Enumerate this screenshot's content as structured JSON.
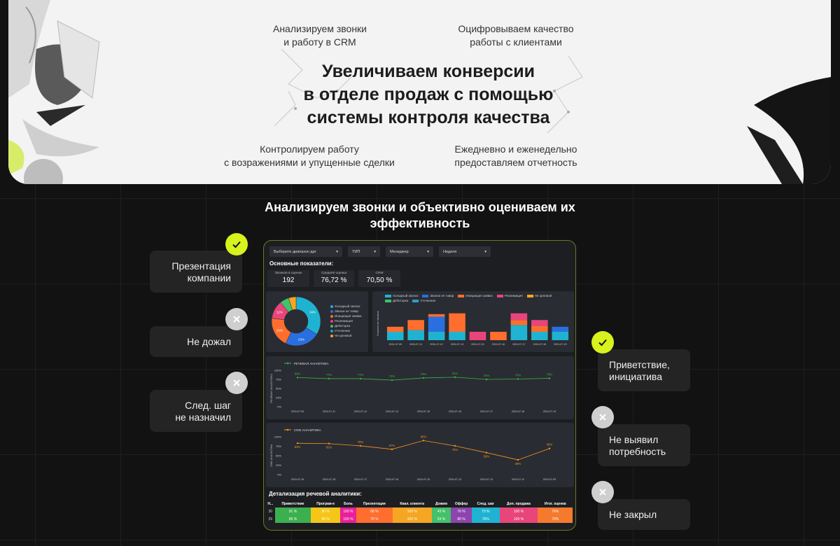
{
  "hero": {
    "cap_top_left": [
      "Анализируем звонки",
      "и работу в CRM"
    ],
    "cap_top_right": [
      "Оцифровываем качество",
      "работы с клиентами"
    ],
    "title": [
      "Увеличиваем конверсии",
      "в отделе продаж с помощью",
      "системы контроля качества"
    ],
    "cap_bottom_left": [
      "Контролируем работу",
      "с возражениями и упущенные сделки"
    ],
    "cap_bottom_right": [
      "Ежедневно и еженедельно",
      "предоставляем отчетность"
    ]
  },
  "section": {
    "title": [
      "Анализируем звонки и объективно оцениваем их",
      "эффективность"
    ]
  },
  "cards": {
    "presentation": [
      "Презентация",
      "компании"
    ],
    "not_waited": [
      "Не дожал"
    ],
    "next_step": [
      "След. шаг",
      "не назначил"
    ],
    "greeting": [
      "Приветствие,",
      "инициатива"
    ],
    "needs": [
      "Не выявил",
      "потребность"
    ],
    "not_closed": [
      "Не закрыл"
    ]
  },
  "dashboard": {
    "filters": [
      "Выберите диапазон дат",
      "ТИП",
      "Менеджер",
      "Неделя"
    ],
    "main_title": "Основные показатели:",
    "kpis": [
      {
        "label": "Звонков в оценке",
        "value": "192"
      },
      {
        "label": "Средняя оценка",
        "value": "76,72 %"
      },
      {
        "label": "CRM",
        "value": "70,50 %"
      }
    ],
    "detail_title": "Детализация речевой аналитики:"
  },
  "colors": {
    "accent": "#d7f21c",
    "cold": "#1fb3d1",
    "not_goods": "#2a6fe0",
    "init": "#ff6e2e",
    "reanim": "#e8457a",
    "not_target": "#f5a623",
    "debt": "#43c16b",
    "clarify": "#27a0c9",
    "speech_line": "#3cb04e",
    "crm_line": "#f5961b"
  },
  "chart_data": [
    {
      "type": "pie",
      "legend": [
        "Холодный звонок",
        "Звонок не товар",
        "Инициация заявки",
        "Реанимация",
        "Дебиторка",
        "Уточнение",
        "Не целевой"
      ],
      "slices": [
        {
          "name": "Холодный звонок",
          "value": 34,
          "label": "34%",
          "color": "#1fb3d1"
        },
        {
          "name": "Звонок не товар",
          "value": 23,
          "label": "23%",
          "color": "#2a6fe0"
        },
        {
          "name": "Инициация заявки",
          "value": 20,
          "label": "20%",
          "color": "#ff6e2e"
        },
        {
          "name": "Реанимация",
          "value": 12,
          "label": "12%",
          "color": "#e8457a"
        },
        {
          "name": "Дебиторка",
          "value": 6,
          "label": "",
          "color": "#43c16b"
        },
        {
          "name": "Не целевой",
          "value": 5,
          "label": "",
          "color": "#f5a623"
        }
      ]
    },
    {
      "type": "bar",
      "stacked": true,
      "legend": [
        "Холодный звонок",
        "Звонок не товар",
        "Инициация заявки",
        "Реанимация",
        "Не целевой",
        "Дебиторка",
        "Уточнение"
      ],
      "ylabel": "Количество звонков",
      "categories": [
        "2024-07-09",
        "2024-07-11",
        "2024-07-12",
        "2024-07-13",
        "2024-07-15",
        "2024-07-16",
        "2024-07-17",
        "2024-07-18",
        "2024-07-19"
      ],
      "series": [
        {
          "name": "Холодный звонок",
          "color": "#1fb3d1",
          "values": [
            10,
            12,
            10,
            10,
            0,
            0,
            18,
            10,
            10
          ]
        },
        {
          "name": "Звонок не товар",
          "color": "#2a6fe0",
          "values": [
            0,
            0,
            18,
            0,
            0,
            0,
            0,
            0,
            6
          ]
        },
        {
          "name": "Инициация заявки",
          "color": "#ff6e2e",
          "values": [
            6,
            12,
            3,
            22,
            0,
            10,
            6,
            7,
            0
          ]
        },
        {
          "name": "Реанимация",
          "color": "#e8457a",
          "values": [
            0,
            0,
            0,
            0,
            10,
            0,
            8,
            7,
            0
          ]
        }
      ],
      "ymax": 40
    },
    {
      "type": "line",
      "title": "РЕЧЕВАЯ АНАЛИТИКА",
      "ylabel": "РЕЧЕВАЯ АНАЛИТИКА",
      "yticks": [
        "0%",
        "25%",
        "50%",
        "75%",
        "100%"
      ],
      "categories": [
        "2024-07-09",
        "2024-07-11",
        "2024-07-12",
        "2024-07-13",
        "2024-07-15",
        "2024-07-16",
        "2024-07-17",
        "2024-07-18",
        "2024-07-19"
      ],
      "values": [
        80,
        77,
        77,
        73,
        79,
        81,
        75,
        76,
        78
      ],
      "labels": [
        "80%",
        "77%",
        "77%",
        "73%",
        "79%",
        "81%",
        "75%",
        "76%",
        "78%"
      ],
      "color": "#3cb04e"
    },
    {
      "type": "line",
      "title": "CRM АНАЛИТИКА",
      "ylabel": "CRM АНАЛИТИКА",
      "yticks": [
        "0%",
        "25%",
        "50%",
        "75%",
        "100%"
      ],
      "categories": [
        "2024-07-19",
        "2024-07-18",
        "2024-07-17",
        "2024-07-16",
        "2024-07-15",
        "2024-07-13",
        "2024-07-12",
        "2024-07-11",
        "2024-07-09"
      ],
      "values": [
        83,
        82,
        76,
        67,
        90,
        76,
        58,
        39,
        69
      ],
      "labels": [
        "83%",
        "82%",
        "76%",
        "67%",
        "90%",
        "76%",
        "58%",
        "39%",
        "69%"
      ],
      "color": "#f5961b"
    },
    {
      "type": "table",
      "columns": [
        "Н...",
        "Приветствие",
        "Програм-е",
        "Боль",
        "Презентация",
        "Квал. клиента",
        "Дожим",
        "Оффер",
        "След. шаг",
        "Доп. продажа",
        "Итог. оценка"
      ],
      "rows": [
        [
          "30",
          "91 %",
          "90 %",
          "100 %",
          "68 %",
          "100 %",
          "43 %",
          "76 %",
          "73 %",
          "100 %",
          "76%"
        ],
        [
          "29",
          "89 %",
          "90 %",
          "100 %",
          "78 %",
          "100 %",
          "53 %",
          "80 %",
          "76%",
          "100 %",
          "78%"
        ]
      ],
      "cell_colors": [
        "#1d1e22",
        "#3cb04e",
        "#f5c518",
        "#e8209a",
        "#ff6e2e",
        "#f5a623",
        "#43c16b",
        "#8e44ad",
        "#1fb3d1",
        "#e8457a",
        "#f57a2e"
      ]
    }
  ]
}
